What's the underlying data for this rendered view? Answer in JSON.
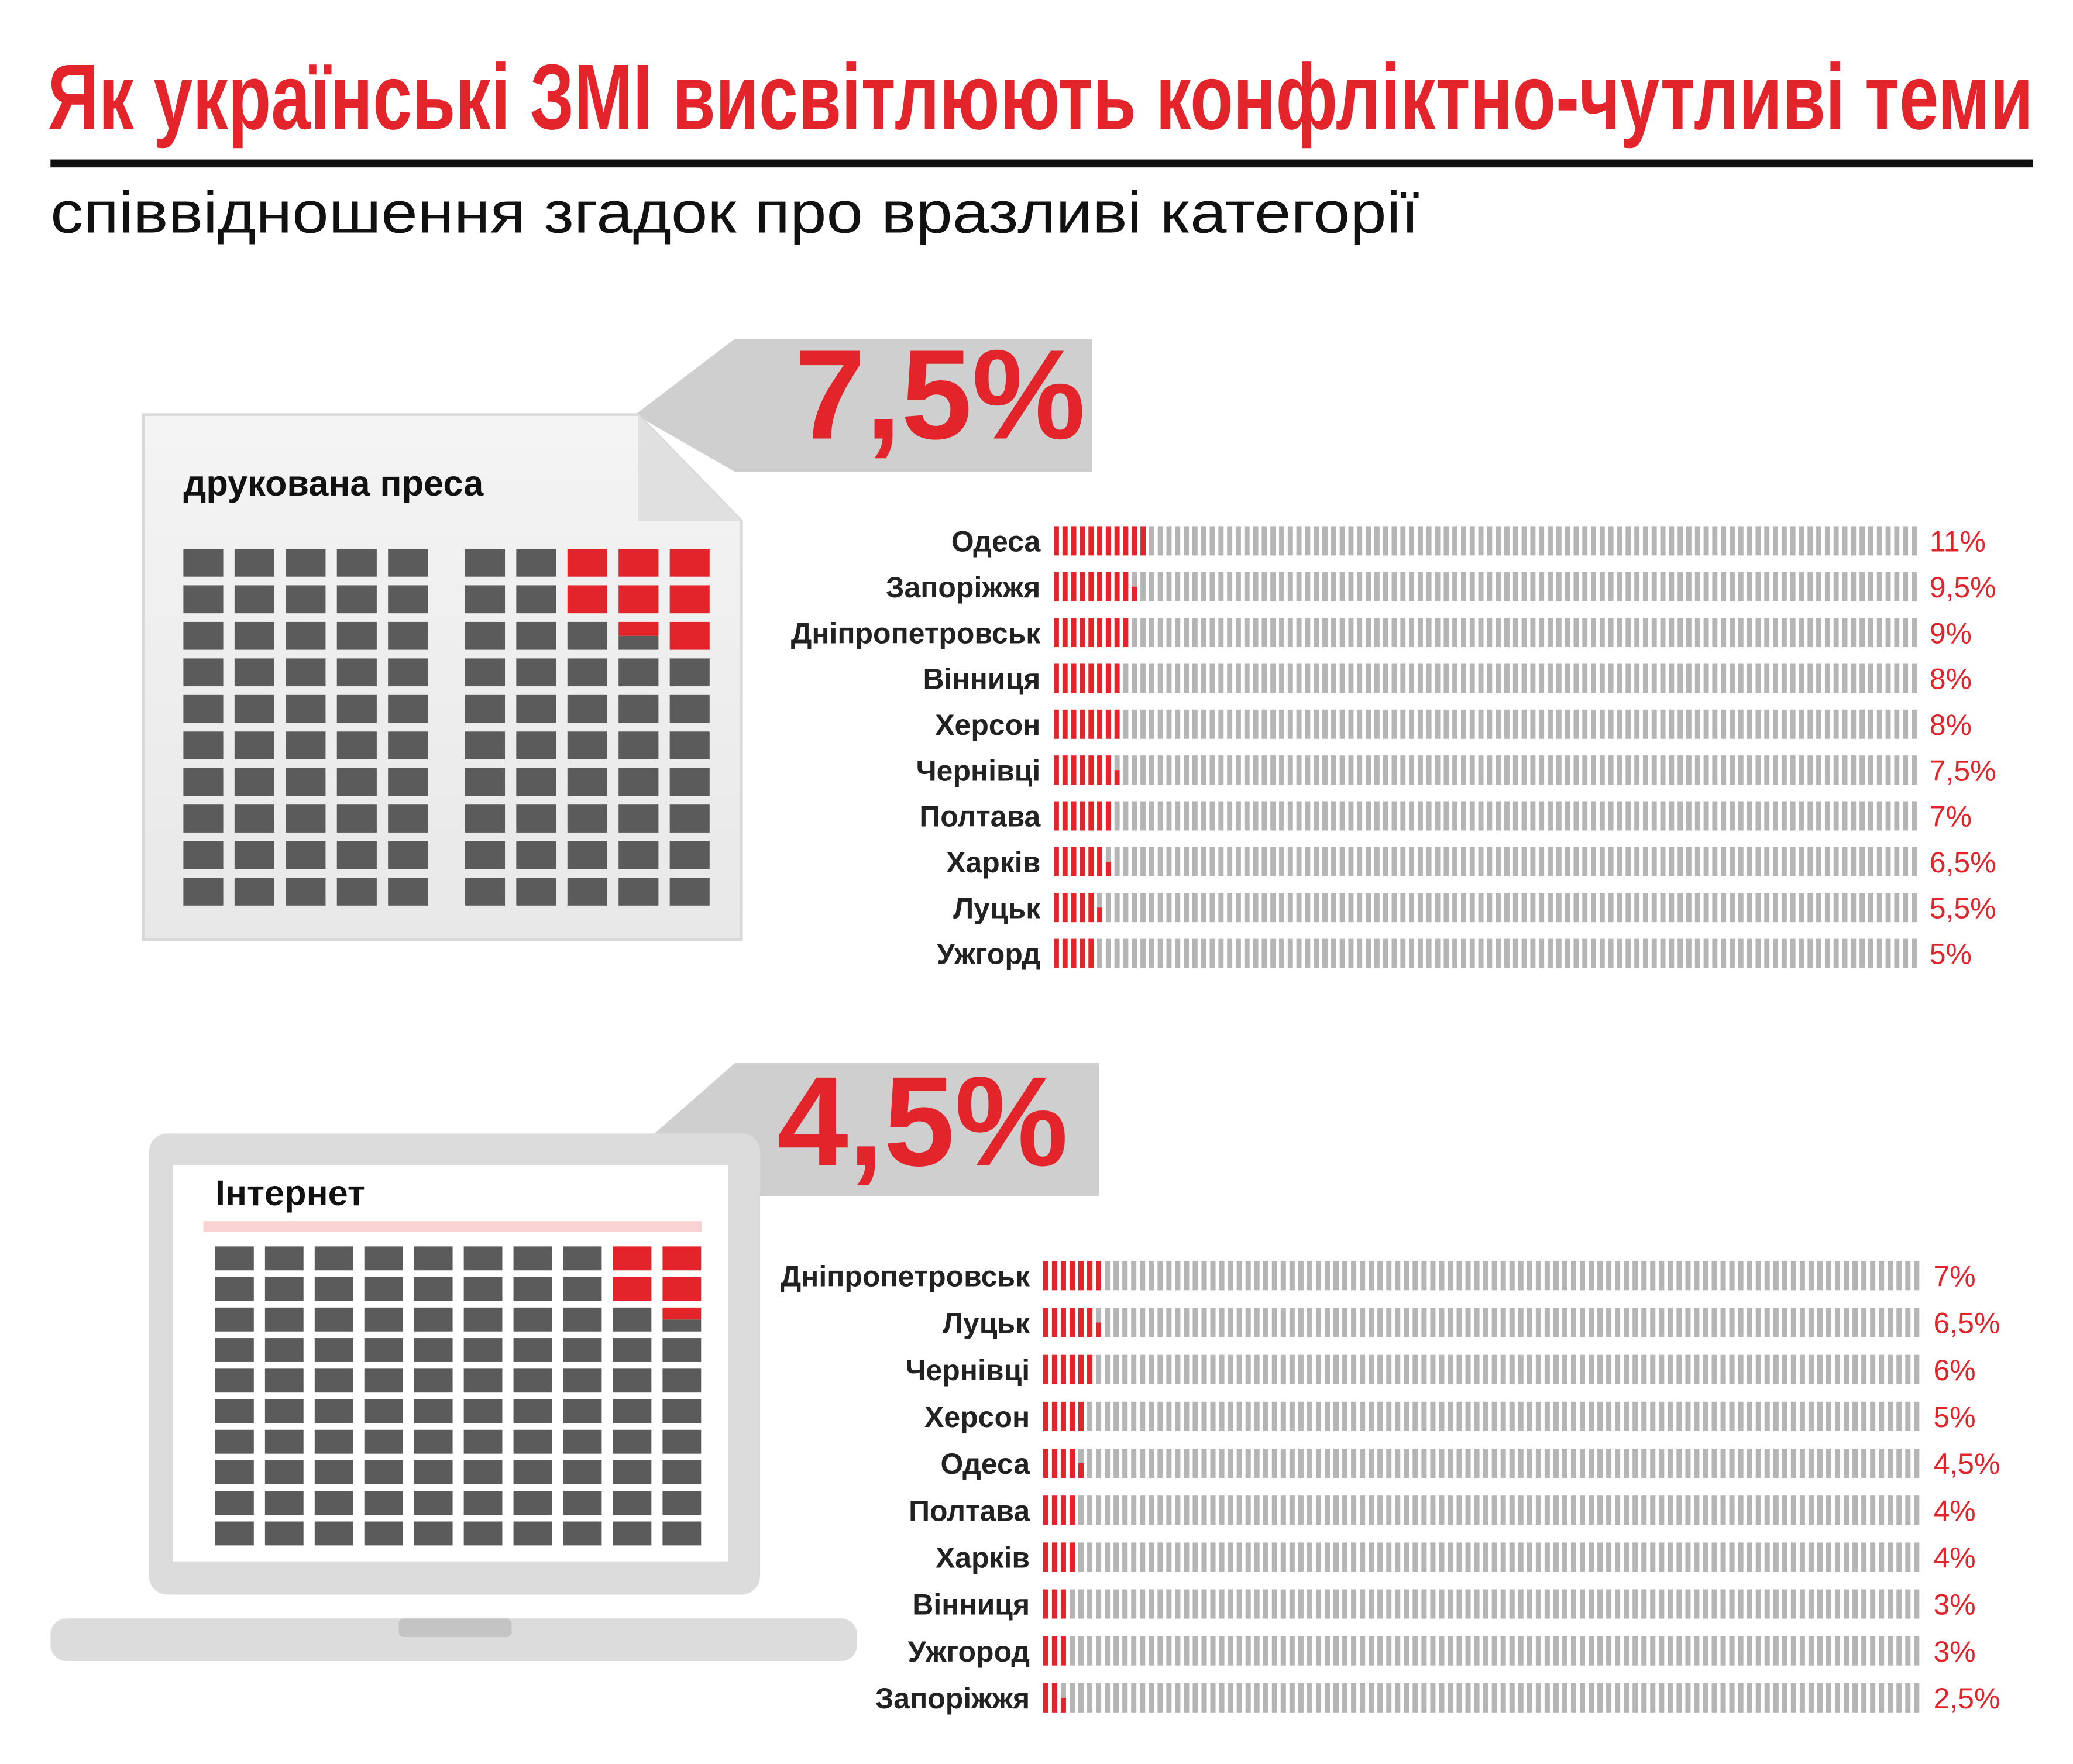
{
  "title": "Як українські ЗМІ висвітлюють конфліктно-чутливі теми",
  "subtitle": "співвідношення згадок про вразливі категорії",
  "chart_data": [
    {
      "type": "bar",
      "title": "друкована преса",
      "total": {
        "value": 7.5,
        "label": "7,5%"
      },
      "categories": [
        "Одеса",
        "Запоріжжя",
        "Дніпропетровськ",
        "Вінниця",
        "Херсон",
        "Чернівці",
        "Полтава",
        "Харків",
        "Луцьк",
        "Ужгорд"
      ],
      "values": [
        11,
        9.5,
        9,
        8,
        8,
        7.5,
        7,
        6.5,
        5.5,
        5
      ],
      "value_labels": [
        "11%",
        "9,5%",
        "9%",
        "8%",
        "8%",
        "7,5%",
        "7%",
        "6,5%",
        "5,5%",
        "5%"
      ],
      "xlim": [
        0,
        100
      ],
      "color": "#e3242b",
      "track_color": "#b5b5b5"
    },
    {
      "type": "bar",
      "title": "Інтернет",
      "total": {
        "value": 4.5,
        "label": "4,5%"
      },
      "categories": [
        "Дніпропетровськ",
        "Луцьк",
        "Чернівці",
        "Херсон",
        "Одеса",
        "Полтава",
        "Харків",
        "Вінниця",
        "Ужгород",
        "Запоріжжя"
      ],
      "values": [
        7,
        6.5,
        6,
        5,
        4.5,
        4,
        4,
        3,
        3,
        2.5
      ],
      "value_labels": [
        "7%",
        "6,5%",
        "6%",
        "5%",
        "4,5%",
        "4%",
        "4%",
        "3%",
        "3%",
        "2,5%"
      ],
      "xlim": [
        0,
        100
      ],
      "color": "#e3242b",
      "track_color": "#b5b5b5"
    }
  ]
}
